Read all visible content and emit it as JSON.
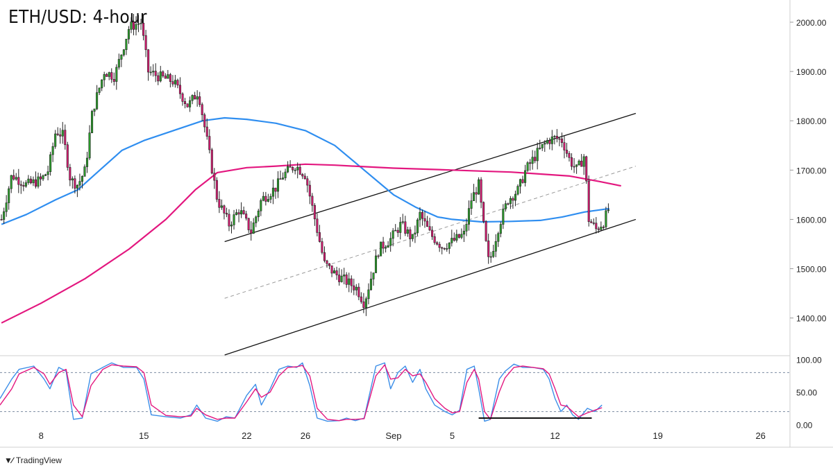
{
  "chart_data": {
    "type": "candlestick",
    "title": "ETH/USD: 4-hour",
    "price_axis": {
      "ticks": [
        "2000.00",
        "1900.00",
        "1800.00",
        "1700.00",
        "1600.00",
        "1500.00",
        "1400.00"
      ],
      "ylim": [
        1325,
        2045
      ]
    },
    "oscillator_axis": {
      "ticks": [
        "100.00",
        "50.00",
        "0.00"
      ],
      "ylim": [
        -5,
        105
      ],
      "levels": [
        80,
        20
      ]
    },
    "x_axis": {
      "tick_labels": [
        "8",
        "15",
        "22",
        "26",
        "Sep",
        "5",
        "12",
        "19",
        "26"
      ],
      "tick_positions_days": [
        8,
        15,
        22,
        26,
        32,
        36,
        43,
        50,
        57
      ],
      "xlim_days": [
        5.2,
        59
      ]
    },
    "price_path": [
      [
        5.3,
        1600
      ],
      [
        6.0,
        1690
      ],
      [
        7.0,
        1670
      ],
      [
        8.0,
        1680
      ],
      [
        8.5,
        1700
      ],
      [
        9.0,
        1780
      ],
      [
        9.5,
        1770
      ],
      [
        10.0,
        1680
      ],
      [
        10.5,
        1670
      ],
      [
        11.0,
        1700
      ],
      [
        11.5,
        1820
      ],
      [
        12.3,
        1900
      ],
      [
        13.0,
        1890
      ],
      [
        13.5,
        1940
      ],
      [
        14.0,
        1990
      ],
      [
        14.8,
        2000
      ],
      [
        15.3,
        1900
      ],
      [
        16.0,
        1890
      ],
      [
        17.0,
        1880
      ],
      [
        18.0,
        1830
      ],
      [
        18.7,
        1860
      ],
      [
        19.3,
        1760
      ],
      [
        20.0,
        1640
      ],
      [
        20.8,
        1590
      ],
      [
        21.5,
        1620
      ],
      [
        22.3,
        1575
      ],
      [
        23.0,
        1640
      ],
      [
        24.0,
        1665
      ],
      [
        24.5,
        1690
      ],
      [
        25.3,
        1710
      ],
      [
        26.0,
        1690
      ],
      [
        26.5,
        1620
      ],
      [
        27.3,
        1510
      ],
      [
        28.0,
        1490
      ],
      [
        28.5,
        1480
      ],
      [
        29.5,
        1460
      ],
      [
        30.0,
        1430
      ],
      [
        31.0,
        1540
      ],
      [
        31.8,
        1560
      ],
      [
        32.5,
        1590
      ],
      [
        33.3,
        1560
      ],
      [
        33.8,
        1610
      ],
      [
        34.5,
        1570
      ],
      [
        35.3,
        1545
      ],
      [
        36.0,
        1555
      ],
      [
        36.8,
        1570
      ],
      [
        37.3,
        1640
      ],
      [
        37.8,
        1670
      ],
      [
        38.2,
        1570
      ],
      [
        38.5,
        1510
      ],
      [
        39.2,
        1590
      ],
      [
        39.8,
        1640
      ],
      [
        40.5,
        1660
      ],
      [
        41.0,
        1700
      ],
      [
        41.8,
        1735
      ],
      [
        42.5,
        1760
      ],
      [
        43.0,
        1765
      ],
      [
        43.5,
        1760
      ],
      [
        44.0,
        1720
      ],
      [
        44.5,
        1700
      ],
      [
        45.0,
        1730
      ],
      [
        45.3,
        1600
      ],
      [
        45.8,
        1580
      ],
      [
        46.3,
        1595
      ],
      [
        46.7,
        1625
      ]
    ],
    "overlays": [
      {
        "name": "MA fast",
        "color": "#2f8ef0",
        "points": [
          [
            5.3,
            1590
          ],
          [
            7,
            1610
          ],
          [
            9,
            1640
          ],
          [
            10.5,
            1660
          ],
          [
            12,
            1700
          ],
          [
            13.5,
            1740
          ],
          [
            15,
            1760
          ],
          [
            17,
            1780
          ],
          [
            19,
            1800
          ],
          [
            20.5,
            1806
          ],
          [
            22,
            1803
          ],
          [
            24,
            1795
          ],
          [
            26,
            1780
          ],
          [
            28,
            1750
          ],
          [
            30,
            1700
          ],
          [
            32,
            1650
          ],
          [
            33.5,
            1625
          ],
          [
            35,
            1605
          ],
          [
            36,
            1600
          ],
          [
            38,
            1595
          ],
          [
            40,
            1596
          ],
          [
            42,
            1598
          ],
          [
            43.5,
            1605
          ],
          [
            45,
            1615
          ],
          [
            46.7,
            1622
          ]
        ]
      },
      {
        "name": "MA slow",
        "color": "#e3177f",
        "points": [
          [
            5.3,
            1390
          ],
          [
            8,
            1430
          ],
          [
            11,
            1480
          ],
          [
            14,
            1540
          ],
          [
            16.5,
            1600
          ],
          [
            18.5,
            1660
          ],
          [
            20,
            1695
          ],
          [
            22,
            1705
          ],
          [
            24,
            1708
          ],
          [
            26,
            1712
          ],
          [
            28,
            1710
          ],
          [
            30,
            1707
          ],
          [
            32,
            1704
          ],
          [
            34,
            1702
          ],
          [
            36,
            1700
          ],
          [
            38,
            1698
          ],
          [
            40,
            1696
          ],
          [
            42,
            1692
          ],
          [
            44,
            1688
          ],
          [
            46,
            1677
          ],
          [
            47.5,
            1668
          ]
        ]
      }
    ],
    "channel_lines": [
      {
        "name": "channel-upper",
        "style": "solid",
        "points": [
          [
            20.5,
            1555
          ],
          [
            48.5,
            1815
          ]
        ]
      },
      {
        "name": "channel-mid",
        "style": "dashed",
        "points": [
          [
            20.5,
            1440
          ],
          [
            48.5,
            1708
          ]
        ]
      },
      {
        "name": "channel-lower",
        "style": "solid",
        "points": [
          [
            20.5,
            1325
          ],
          [
            48.5,
            1600
          ]
        ]
      }
    ],
    "oscillator": {
      "series": [
        {
          "name": "K",
          "color": "#3b8ee8",
          "points": [
            [
              5.2,
              40
            ],
            [
              6,
              70
            ],
            [
              6.5,
              85
            ],
            [
              7.5,
              90
            ],
            [
              8.2,
              70
            ],
            [
              8.6,
              55
            ],
            [
              9.2,
              88
            ],
            [
              9.7,
              82
            ],
            [
              10.2,
              8
            ],
            [
              10.8,
              10
            ],
            [
              11.4,
              78
            ],
            [
              12.2,
              88
            ],
            [
              12.8,
              95
            ],
            [
              13.6,
              88
            ],
            [
              14.5,
              88
            ],
            [
              15,
              70
            ],
            [
              15.5,
              15
            ],
            [
              16.5,
              12
            ],
            [
              17.5,
              10
            ],
            [
              18.2,
              15
            ],
            [
              18.6,
              30
            ],
            [
              19.2,
              10
            ],
            [
              20,
              5
            ],
            [
              20.6,
              12
            ],
            [
              21.2,
              10
            ],
            [
              22,
              45
            ],
            [
              22.6,
              62
            ],
            [
              23,
              30
            ],
            [
              23.6,
              55
            ],
            [
              24.2,
              85
            ],
            [
              24.8,
              90
            ],
            [
              25.4,
              88
            ],
            [
              25.8,
              95
            ],
            [
              26.3,
              60
            ],
            [
              26.8,
              10
            ],
            [
              27.5,
              5
            ],
            [
              28.3,
              6
            ],
            [
              28.8,
              10
            ],
            [
              29.4,
              6
            ],
            [
              30,
              10
            ],
            [
              30.8,
              90
            ],
            [
              31.4,
              95
            ],
            [
              31.8,
              55
            ],
            [
              32.3,
              80
            ],
            [
              32.8,
              90
            ],
            [
              33.3,
              65
            ],
            [
              33.8,
              85
            ],
            [
              34.2,
              55
            ],
            [
              34.8,
              30
            ],
            [
              35.5,
              20
            ],
            [
              36,
              15
            ],
            [
              36.5,
              22
            ],
            [
              37,
              85
            ],
            [
              37.5,
              90
            ],
            [
              37.8,
              55
            ],
            [
              38.2,
              5
            ],
            [
              38.6,
              8
            ],
            [
              39.2,
              70
            ],
            [
              39.6,
              82
            ],
            [
              40.2,
              93
            ],
            [
              40.8,
              88
            ],
            [
              41.5,
              88
            ],
            [
              42.2,
              85
            ],
            [
              42.6,
              70
            ],
            [
              43,
              40
            ],
            [
              43.4,
              20
            ],
            [
              43.8,
              30
            ],
            [
              44.2,
              15
            ],
            [
              44.6,
              8
            ],
            [
              45.2,
              25
            ],
            [
              45.7,
              20
            ],
            [
              46.2,
              30
            ]
          ]
        },
        {
          "name": "D",
          "color": "#e3177f",
          "points": [
            [
              5.2,
              30
            ],
            [
              6,
              55
            ],
            [
              6.5,
              78
            ],
            [
              7.5,
              88
            ],
            [
              8.2,
              78
            ],
            [
              8.6,
              62
            ],
            [
              9.2,
              80
            ],
            [
              9.7,
              85
            ],
            [
              10.2,
              30
            ],
            [
              10.8,
              12
            ],
            [
              11.4,
              60
            ],
            [
              12.2,
              85
            ],
            [
              12.8,
              92
            ],
            [
              13.6,
              90
            ],
            [
              14.5,
              89
            ],
            [
              15,
              80
            ],
            [
              15.5,
              30
            ],
            [
              16.5,
              14
            ],
            [
              17.5,
              12
            ],
            [
              18.2,
              13
            ],
            [
              18.6,
              25
            ],
            [
              19.2,
              15
            ],
            [
              20,
              8
            ],
            [
              20.6,
              10
            ],
            [
              21.2,
              10
            ],
            [
              22,
              35
            ],
            [
              22.6,
              55
            ],
            [
              23,
              42
            ],
            [
              23.6,
              50
            ],
            [
              24.2,
              75
            ],
            [
              24.8,
              88
            ],
            [
              25.4,
              89
            ],
            [
              25.8,
              91
            ],
            [
              26.3,
              75
            ],
            [
              26.8,
              25
            ],
            [
              27.5,
              8
            ],
            [
              28.3,
              6
            ],
            [
              28.8,
              8
            ],
            [
              29.4,
              8
            ],
            [
              30,
              9
            ],
            [
              30.8,
              75
            ],
            [
              31.4,
              92
            ],
            [
              31.8,
              70
            ],
            [
              32.3,
              72
            ],
            [
              32.8,
              85
            ],
            [
              33.3,
              75
            ],
            [
              33.8,
              78
            ],
            [
              34.2,
              65
            ],
            [
              34.8,
              40
            ],
            [
              35.5,
              25
            ],
            [
              36,
              18
            ],
            [
              36.5,
              20
            ],
            [
              37,
              65
            ],
            [
              37.5,
              85
            ],
            [
              37.8,
              70
            ],
            [
              38.2,
              20
            ],
            [
              38.6,
              8
            ],
            [
              39.2,
              50
            ],
            [
              39.6,
              72
            ],
            [
              40.2,
              88
            ],
            [
              40.8,
              90
            ],
            [
              41.5,
              88
            ],
            [
              42.2,
              86
            ],
            [
              42.6,
              78
            ],
            [
              43,
              55
            ],
            [
              43.4,
              30
            ],
            [
              43.8,
              28
            ],
            [
              44.2,
              20
            ],
            [
              44.6,
              12
            ],
            [
              45.2,
              18
            ],
            [
              45.7,
              22
            ],
            [
              46.2,
              26
            ]
          ]
        }
      ],
      "support_line": {
        "points": [
          [
            37.8,
            10
          ],
          [
            45.5,
            10
          ]
        ]
      }
    }
  }
}
